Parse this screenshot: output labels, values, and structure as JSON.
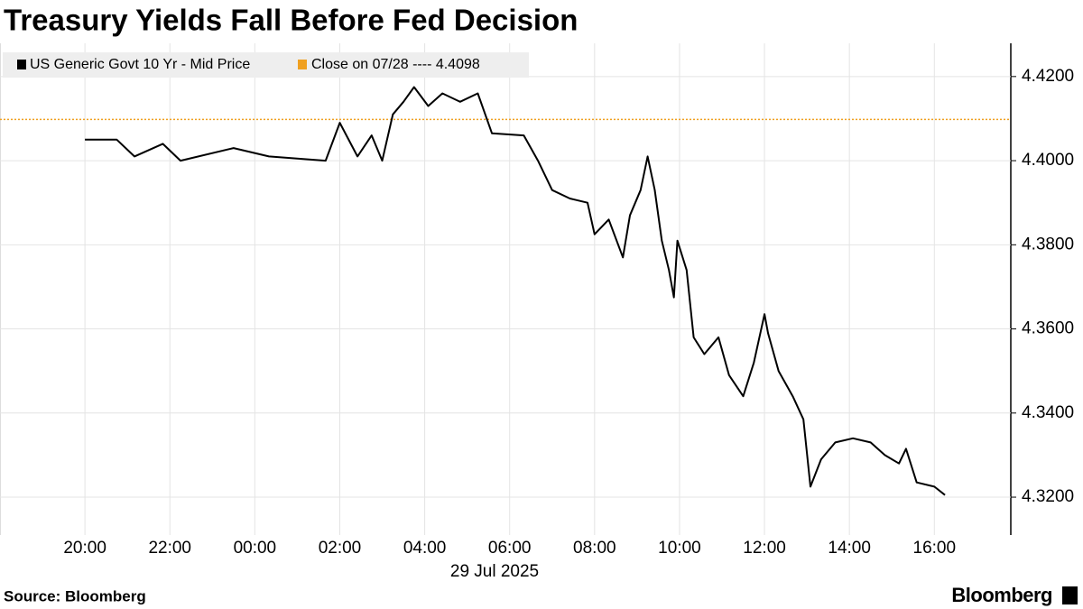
{
  "chart_data": {
    "type": "line",
    "title": "Treasury Yields Fall Before Fed Decision",
    "x": [
      "20:00",
      "20:45",
      "21:10",
      "21:50",
      "22:15",
      "23:30",
      "00:20",
      "01:40",
      "02:00",
      "02:25",
      "02:45",
      "03:00",
      "03:15",
      "03:30",
      "03:45",
      "04:05",
      "04:25",
      "04:50",
      "05:15",
      "05:35",
      "06:20",
      "06:40",
      "07:00",
      "07:25",
      "07:50",
      "08:00",
      "08:20",
      "08:40",
      "08:50",
      "09:05",
      "09:15",
      "09:25",
      "09:35",
      "09:45",
      "09:52",
      "09:57",
      "10:10",
      "10:20",
      "10:35",
      "10:55",
      "11:10",
      "11:30",
      "11:45",
      "12:00",
      "12:05",
      "12:20",
      "12:40",
      "12:55",
      "13:05",
      "13:20",
      "13:40",
      "14:05",
      "14:30",
      "14:50",
      "15:10",
      "15:20",
      "15:35",
      "16:00",
      "16:15"
    ],
    "series": [
      {
        "name": "US Generic Govt 10 Yr - Mid Price",
        "color": "#000000",
        "values": [
          4.405,
          4.405,
          4.401,
          4.404,
          4.4,
          4.403,
          4.401,
          4.4,
          4.409,
          4.401,
          4.406,
          4.4,
          4.411,
          4.414,
          4.4175,
          4.413,
          4.416,
          4.414,
          4.416,
          4.4065,
          4.406,
          4.4,
          4.393,
          4.391,
          4.39,
          4.3825,
          4.386,
          4.377,
          4.387,
          4.393,
          4.401,
          4.393,
          4.381,
          4.374,
          4.3675,
          4.381,
          4.374,
          4.358,
          4.354,
          4.358,
          4.349,
          4.344,
          4.352,
          4.3635,
          4.359,
          4.35,
          4.344,
          4.3385,
          4.3225,
          4.329,
          4.333,
          4.334,
          4.333,
          4.33,
          4.328,
          4.3315,
          4.3235,
          4.3225,
          4.3205
        ]
      }
    ],
    "reference_line": {
      "name": "Close on 07/28 ---- 4.4098",
      "value": 4.4098,
      "color": "#f0a020"
    },
    "xlim": [
      "18:00",
      "17:48"
    ],
    "xticks": [
      "20:00",
      "22:00",
      "00:00",
      "02:00",
      "04:00",
      "06:00",
      "08:00",
      "10:00",
      "12:00",
      "14:00",
      "16:00"
    ],
    "date_label": "29 Jul 2025",
    "ylim": [
      4.311,
      4.4279
    ],
    "yticks": [
      {
        "value": 4.32,
        "label": "4.3200"
      },
      {
        "value": 4.34,
        "label": "4.3400"
      },
      {
        "value": 4.36,
        "label": "4.3600"
      },
      {
        "value": 4.38,
        "label": "4.3800"
      },
      {
        "value": 4.4,
        "label": "4.4000"
      },
      {
        "value": 4.42,
        "label": "4.4200"
      }
    ],
    "grid": true,
    "source": "Source: Bloomberg",
    "brand": "Bloomberg"
  }
}
